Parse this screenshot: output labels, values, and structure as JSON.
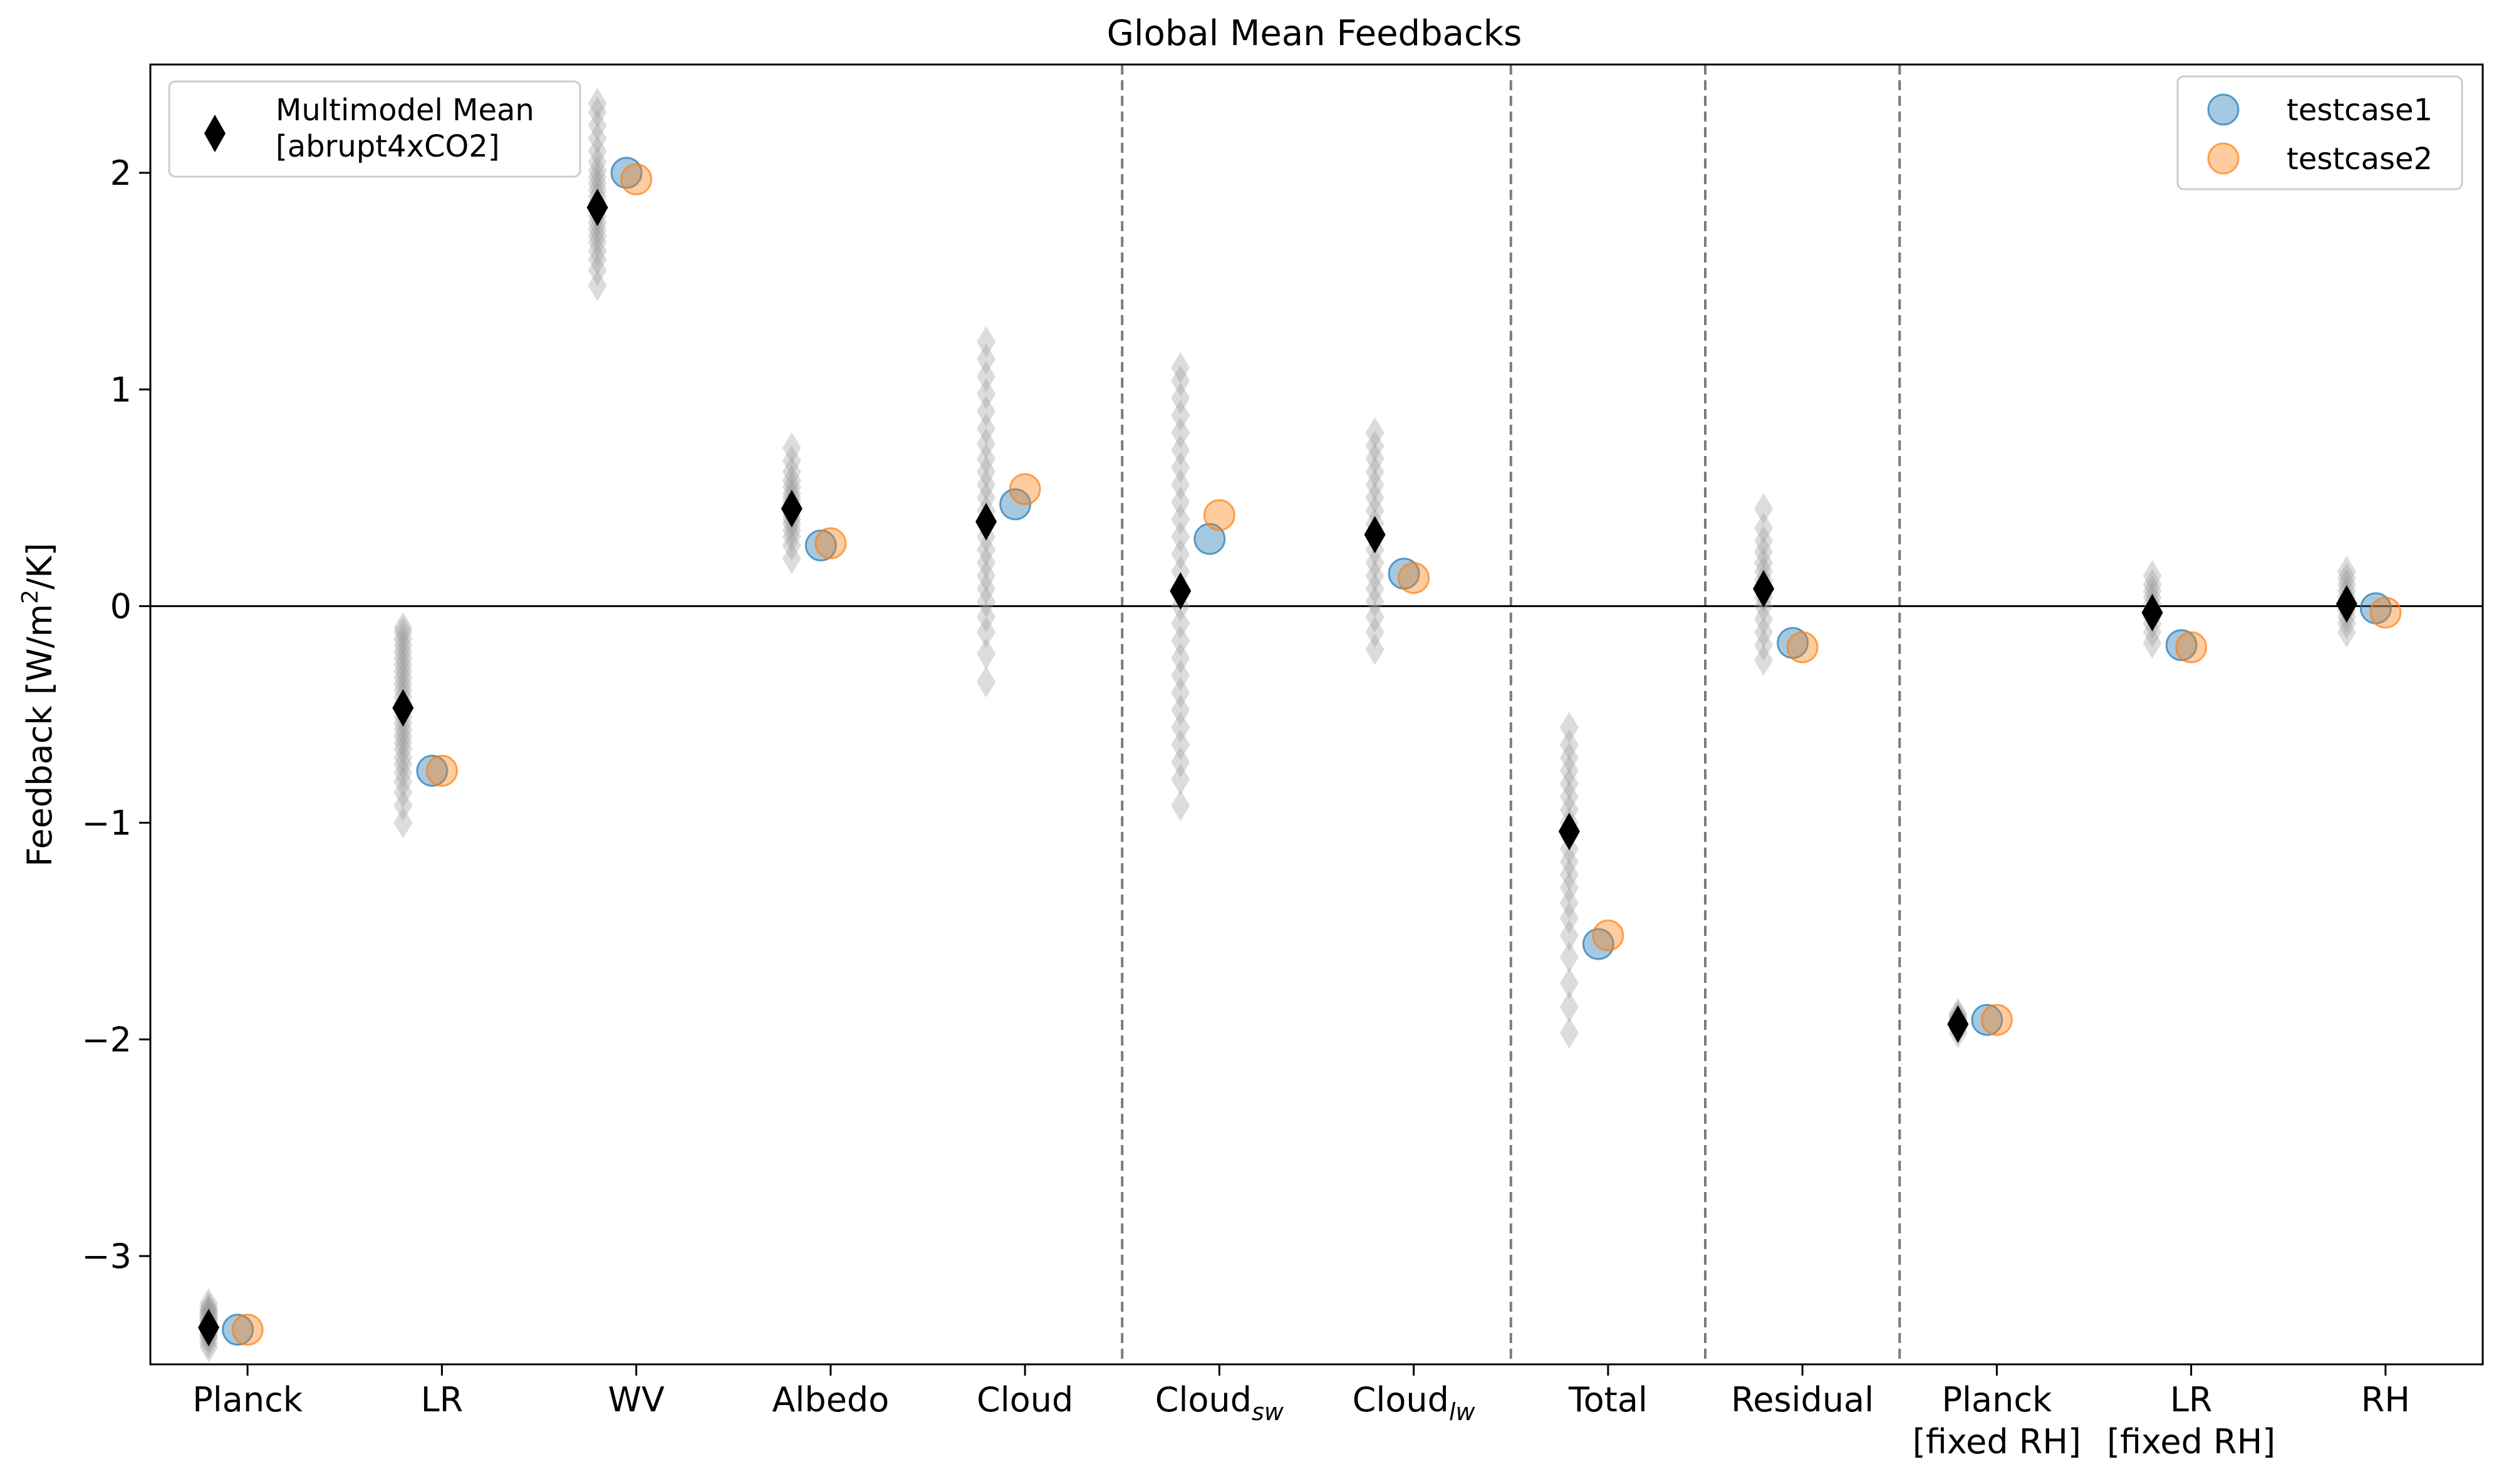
{
  "chart_data": {
    "type": "scatter",
    "title": "Global Mean Feedbacks",
    "ylabel": "Feedback [W/m²/K]",
    "ylabel_parts": {
      "prefix": "Feedback [W/m",
      "sup": "2",
      "suffix": "/K]"
    },
    "ylim": [
      -3.5,
      2.5
    ],
    "yticks": [
      -3,
      -2,
      -1,
      0,
      1,
      2
    ],
    "ytick_labels": [
      "−3",
      "−2",
      "−1",
      "0",
      "1",
      "2"
    ],
    "grid": false,
    "zero_line": true,
    "group_separators_after_category_index": [
      4,
      6,
      7,
      8
    ],
    "categories": [
      {
        "line1": "Planck",
        "sub": "",
        "line2": ""
      },
      {
        "line1": "LR",
        "sub": "",
        "line2": ""
      },
      {
        "line1": "WV",
        "sub": "",
        "line2": ""
      },
      {
        "line1": "Albedo",
        "sub": "",
        "line2": ""
      },
      {
        "line1": "Cloud",
        "sub": "",
        "line2": ""
      },
      {
        "line1": "Cloud",
        "sub": "sw",
        "line2": ""
      },
      {
        "line1": "Cloud",
        "sub": "lw",
        "line2": ""
      },
      {
        "line1": "Total",
        "sub": "",
        "line2": ""
      },
      {
        "line1": "Residual",
        "sub": "",
        "line2": ""
      },
      {
        "line1": "Planck",
        "sub": "",
        "line2": "[fixed RH]"
      },
      {
        "line1": "LR",
        "sub": "",
        "line2": "[fixed RH]"
      },
      {
        "line1": "RH",
        "sub": "",
        "line2": ""
      }
    ],
    "model_spread": {
      "color": "#9a9a9a",
      "values": [
        [
          -3.42,
          -3.4,
          -3.38,
          -3.37,
          -3.36,
          -3.35,
          -3.34,
          -3.33,
          -3.33,
          -3.32,
          -3.31,
          -3.3,
          -3.29,
          -3.28,
          -3.27,
          -3.26,
          -3.25,
          -3.24,
          -3.22
        ],
        [
          -1.0,
          -0.92,
          -0.86,
          -0.81,
          -0.77,
          -0.73,
          -0.7,
          -0.66,
          -0.63,
          -0.6,
          -0.57,
          -0.54,
          -0.51,
          -0.48,
          -0.45,
          -0.42,
          -0.39,
          -0.36,
          -0.33,
          -0.3,
          -0.27,
          -0.24,
          -0.21,
          -0.18,
          -0.15,
          -0.12,
          -0.1
        ],
        [
          1.48,
          1.55,
          1.6,
          1.64,
          1.68,
          1.71,
          1.74,
          1.77,
          1.8,
          1.83,
          1.86,
          1.89,
          1.92,
          1.95,
          1.98,
          2.01,
          2.05,
          2.1,
          2.16,
          2.22,
          2.28,
          2.32
        ],
        [
          0.22,
          0.28,
          0.32,
          0.35,
          0.38,
          0.4,
          0.42,
          0.44,
          0.46,
          0.48,
          0.5,
          0.52,
          0.55,
          0.58,
          0.62,
          0.67,
          0.73
        ],
        [
          -0.35,
          -0.22,
          -0.12,
          -0.05,
          0.02,
          0.08,
          0.14,
          0.2,
          0.26,
          0.32,
          0.38,
          0.44,
          0.5,
          0.56,
          0.62,
          0.68,
          0.75,
          0.82,
          0.9,
          0.98,
          1.06,
          1.14,
          1.22
        ],
        [
          -0.92,
          -0.8,
          -0.72,
          -0.64,
          -0.56,
          -0.48,
          -0.4,
          -0.32,
          -0.24,
          -0.16,
          -0.08,
          0.0,
          0.08,
          0.16,
          0.24,
          0.32,
          0.4,
          0.48,
          0.56,
          0.64,
          0.72,
          0.8,
          0.88,
          0.96,
          1.04,
          1.1
        ],
        [
          -0.2,
          -0.12,
          -0.05,
          0.02,
          0.08,
          0.14,
          0.2,
          0.26,
          0.32,
          0.38,
          0.44,
          0.5,
          0.56,
          0.62,
          0.68,
          0.74,
          0.8
        ],
        [
          -1.97,
          -1.85,
          -1.74,
          -1.62,
          -1.52,
          -1.44,
          -1.37,
          -1.3,
          -1.24,
          -1.18,
          -1.12,
          -1.06,
          -1.0,
          -0.94,
          -0.88,
          -0.82,
          -0.76,
          -0.7,
          -0.64,
          -0.56
        ],
        [
          -0.25,
          -0.18,
          -0.12,
          -0.06,
          0.0,
          0.04,
          0.08,
          0.12,
          0.16,
          0.2,
          0.25,
          0.3,
          0.36,
          0.45
        ],
        [
          -1.97,
          -1.95,
          -1.94,
          -1.93,
          -1.92,
          -1.91,
          -1.9,
          -1.89,
          -1.88
        ],
        [
          -0.17,
          -0.12,
          -0.08,
          -0.05,
          -0.02,
          0.01,
          0.04,
          0.07,
          0.1,
          0.14
        ],
        [
          -0.12,
          -0.08,
          -0.05,
          -0.02,
          0.0,
          0.02,
          0.04,
          0.07,
          0.1,
          0.13,
          0.16
        ]
      ]
    },
    "series": [
      {
        "name": "Multimodel Mean\n[abrupt4xCO2]",
        "legend_line1": "Multimodel Mean",
        "legend_line2": "[abrupt4xCO2]",
        "marker": "diamond",
        "color": "#000000",
        "values": [
          -3.33,
          -0.47,
          1.84,
          0.45,
          0.39,
          0.07,
          0.33,
          -1.04,
          0.08,
          -1.93,
          -0.03,
          0.01
        ]
      },
      {
        "name": "testcase1",
        "marker": "circle",
        "color": "#1f77b4",
        "values": [
          -3.34,
          -0.76,
          2.0,
          0.28,
          0.47,
          0.31,
          0.15,
          -1.56,
          -0.17,
          -1.91,
          -0.18,
          -0.01
        ]
      },
      {
        "name": "testcase2",
        "marker": "circle",
        "color": "#ff7f0e",
        "values": [
          -3.34,
          -0.76,
          1.97,
          0.29,
          0.54,
          0.42,
          0.13,
          -1.52,
          -0.19,
          -1.91,
          -0.19,
          -0.03
        ]
      }
    ],
    "legends": [
      {
        "position": "upper-left",
        "entries": [
          "Multimodel Mean\n[abrupt4xCO2]"
        ]
      },
      {
        "position": "upper-right",
        "entries": [
          "testcase1",
          "testcase2"
        ]
      }
    ]
  }
}
